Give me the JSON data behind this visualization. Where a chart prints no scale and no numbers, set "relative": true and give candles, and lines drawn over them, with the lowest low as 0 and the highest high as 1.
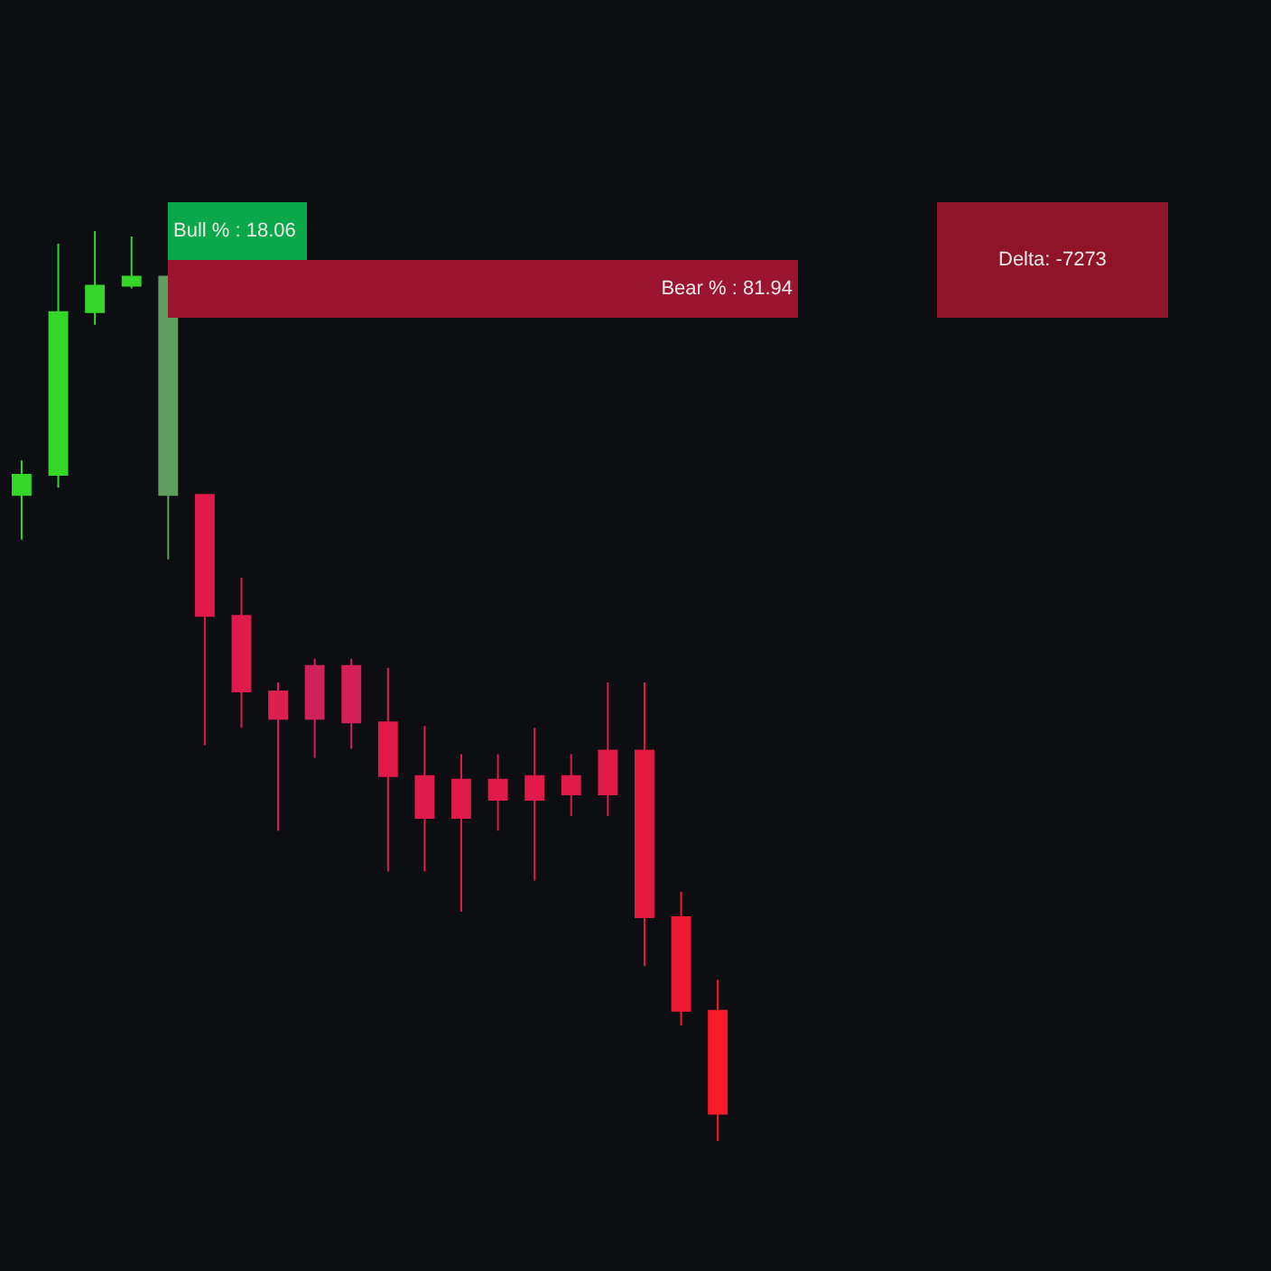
{
  "chart_data": [
    {
      "type": "candlestick",
      "relative": true,
      "categories": [
        null,
        null,
        null,
        null,
        null,
        null,
        null,
        null,
        null,
        null,
        null,
        null,
        null,
        null,
        null,
        null,
        null,
        null,
        null,
        null
      ],
      "ohlc": [
        [
          0.71,
          0.748,
          0.661,
          0.732
        ],
        [
          0.732,
          0.986,
          0.718,
          0.911
        ],
        [
          0.911,
          1.0,
          0.897,
          0.94
        ],
        [
          0.94,
          0.994,
          0.937,
          0.95
        ],
        [
          0.71,
          0.95,
          0.639,
          0.95
        ],
        [
          0.71,
          0.71,
          0.435,
          0.577
        ],
        [
          0.577,
          0.619,
          0.454,
          0.494
        ],
        [
          0.494,
          0.504,
          0.341,
          0.464
        ],
        [
          0.522,
          0.53,
          0.421,
          0.464
        ],
        [
          0.522,
          0.53,
          0.431,
          0.46
        ],
        [
          0.46,
          0.52,
          0.296,
          0.401
        ],
        [
          0.401,
          0.456,
          0.296,
          0.355
        ],
        [
          0.397,
          0.425,
          0.252,
          0.355
        ],
        [
          0.397,
          0.425,
          0.341,
          0.375
        ],
        [
          0.401,
          0.454,
          0.286,
          0.375
        ],
        [
          0.401,
          0.425,
          0.357,
          0.381
        ],
        [
          0.429,
          0.504,
          0.357,
          0.381
        ],
        [
          0.429,
          0.504,
          0.192,
          0.246
        ],
        [
          0.246,
          0.274,
          0.127,
          0.143
        ],
        [
          0.143,
          0.177,
          0.0,
          0.03
        ]
      ],
      "colors": [
        "#34d62a",
        "#34d62a",
        "#34d62a",
        "#34d62a",
        "#5e9e5e",
        "#e01a4a",
        "#e01a4a",
        "#dc1e50",
        "#d0215a",
        "#d6205a",
        "#e01a4a",
        "#e01a4a",
        "#e01a4a",
        "#e01a4a",
        "#e01a4a",
        "#e01a4a",
        "#e01a4a",
        "#e61a40",
        "#ee1a36",
        "#fa1a2a"
      ]
    },
    {
      "type": "bar",
      "orientation": "horizontal",
      "categories": [
        null,
        null
      ],
      "values": [
        18.06,
        81.94
      ],
      "colors": [
        "#0aa84a",
        "#9b1530"
      ],
      "value_labels": [
        "Bull % : 18.06",
        "Bear % : 81.94"
      ],
      "xlim": [
        0,
        100
      ],
      "tick_labels": false,
      "annotations": [
        "Delta: -7273"
      ]
    }
  ]
}
